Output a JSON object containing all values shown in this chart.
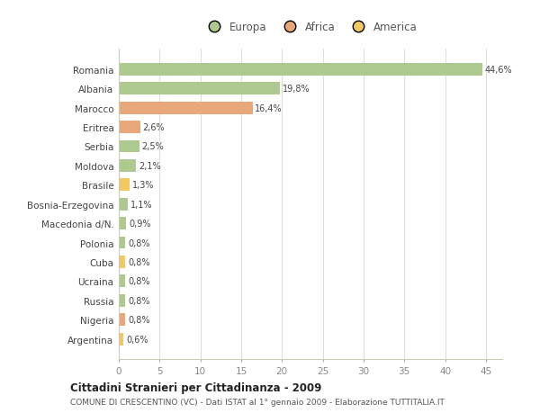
{
  "title": "Cittadini Stranieri per Cittadinanza - 2009",
  "subtitle": "COMUNE DI CRESCENTINO (VC) - Dati ISTAT al 1° gennaio 2009 - Elaborazione TUTTITALIA.IT",
  "categories": [
    "Romania",
    "Albania",
    "Marocco",
    "Eritrea",
    "Serbia",
    "Moldova",
    "Brasile",
    "Bosnia-Erzegovina",
    "Macedonia d/N.",
    "Polonia",
    "Cuba",
    "Ucraina",
    "Russia",
    "Nigeria",
    "Argentina"
  ],
  "values": [
    44.6,
    19.8,
    16.4,
    2.6,
    2.5,
    2.1,
    1.3,
    1.1,
    0.9,
    0.8,
    0.8,
    0.8,
    0.8,
    0.8,
    0.6
  ],
  "labels": [
    "44,6%",
    "19,8%",
    "16,4%",
    "2,6%",
    "2,5%",
    "2,1%",
    "1,3%",
    "1,1%",
    "0,9%",
    "0,8%",
    "0,8%",
    "0,8%",
    "0,8%",
    "0,8%",
    "0,6%"
  ],
  "continents": [
    "Europa",
    "Europa",
    "Africa",
    "Africa",
    "Europa",
    "Europa",
    "America",
    "Europa",
    "Europa",
    "Europa",
    "America",
    "Europa",
    "Europa",
    "Africa",
    "America"
  ],
  "colors": {
    "Europa": "#adc990",
    "Africa": "#e8a87c",
    "America": "#f0c864"
  },
  "legend_colors": {
    "Europa": "#adc990",
    "Africa": "#e8a87c",
    "America": "#f0c864"
  },
  "background_color": "#ffffff",
  "plot_bg_color": "#ffffff",
  "grid_color": "#e0e0d0",
  "xlim": [
    0,
    47
  ],
  "xticks": [
    0,
    5,
    10,
    15,
    20,
    25,
    30,
    35,
    40,
    45
  ]
}
